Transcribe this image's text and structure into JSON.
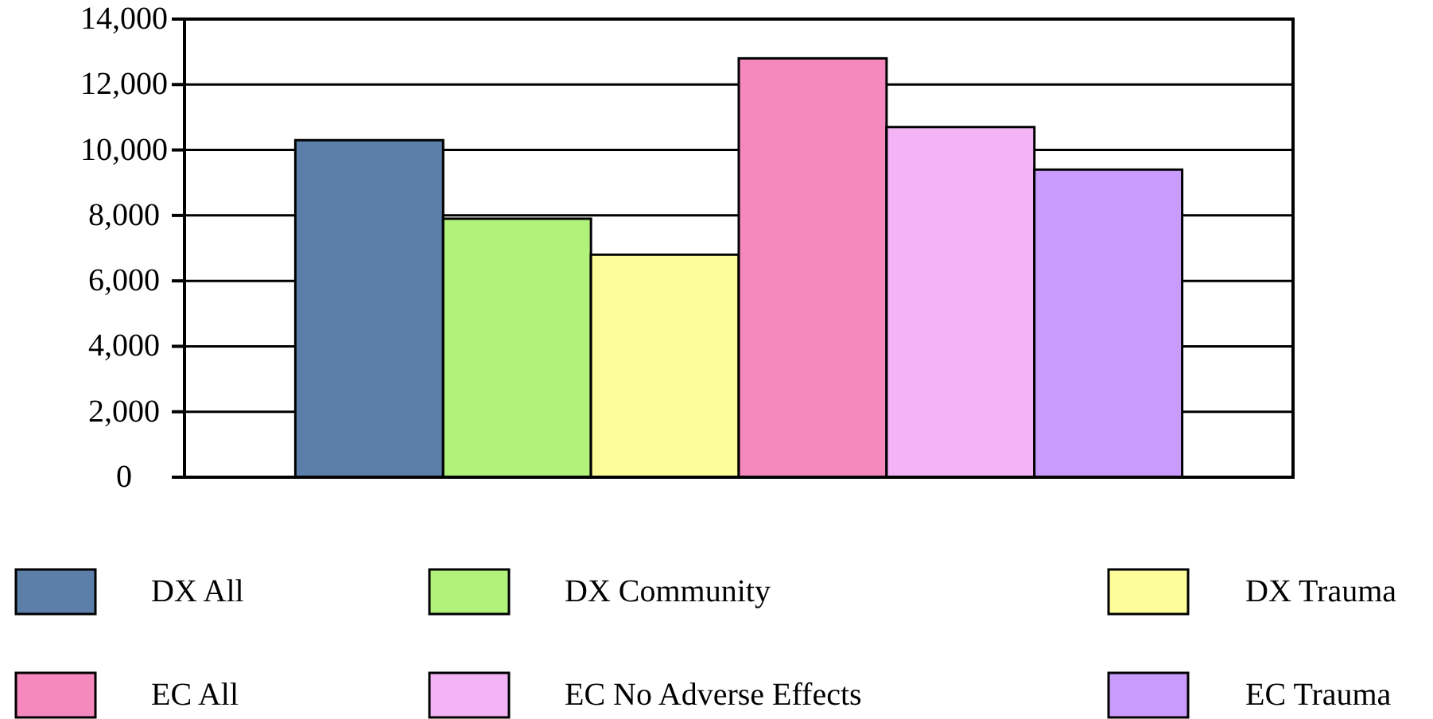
{
  "chart_data": {
    "type": "bar",
    "categories": [
      null
    ],
    "series": [
      {
        "name": "DX All",
        "color": "#5b7fa8",
        "values": [
          10300
        ]
      },
      {
        "name": "DX Community",
        "color": "#b0f27a",
        "values": [
          7900
        ]
      },
      {
        "name": "DX Trauma",
        "color": "#fdfd99",
        "values": [
          6800
        ]
      },
      {
        "name": "EC All",
        "color": "#f589be",
        "values": [
          12800
        ]
      },
      {
        "name": "EC No Adverse Effects",
        "color": "#f3b3f5",
        "values": [
          10700
        ]
      },
      {
        "name": "EC Trauma",
        "color": "#c99bfc",
        "values": [
          9400
        ]
      }
    ],
    "ylim": [
      0,
      14000
    ],
    "yticks": [
      {
        "value": 0,
        "label": "0"
      },
      {
        "value": 2000,
        "label": "2,000"
      },
      {
        "value": 4000,
        "label": "4,000"
      },
      {
        "value": 6000,
        "label": "6,000"
      },
      {
        "value": 8000,
        "label": "8,000"
      },
      {
        "value": 10000,
        "label": "10,000"
      },
      {
        "value": 12000,
        "label": "12,000"
      },
      {
        "value": 14000,
        "label": "14,000"
      }
    ],
    "grid": "y",
    "legend": "bottom"
  }
}
